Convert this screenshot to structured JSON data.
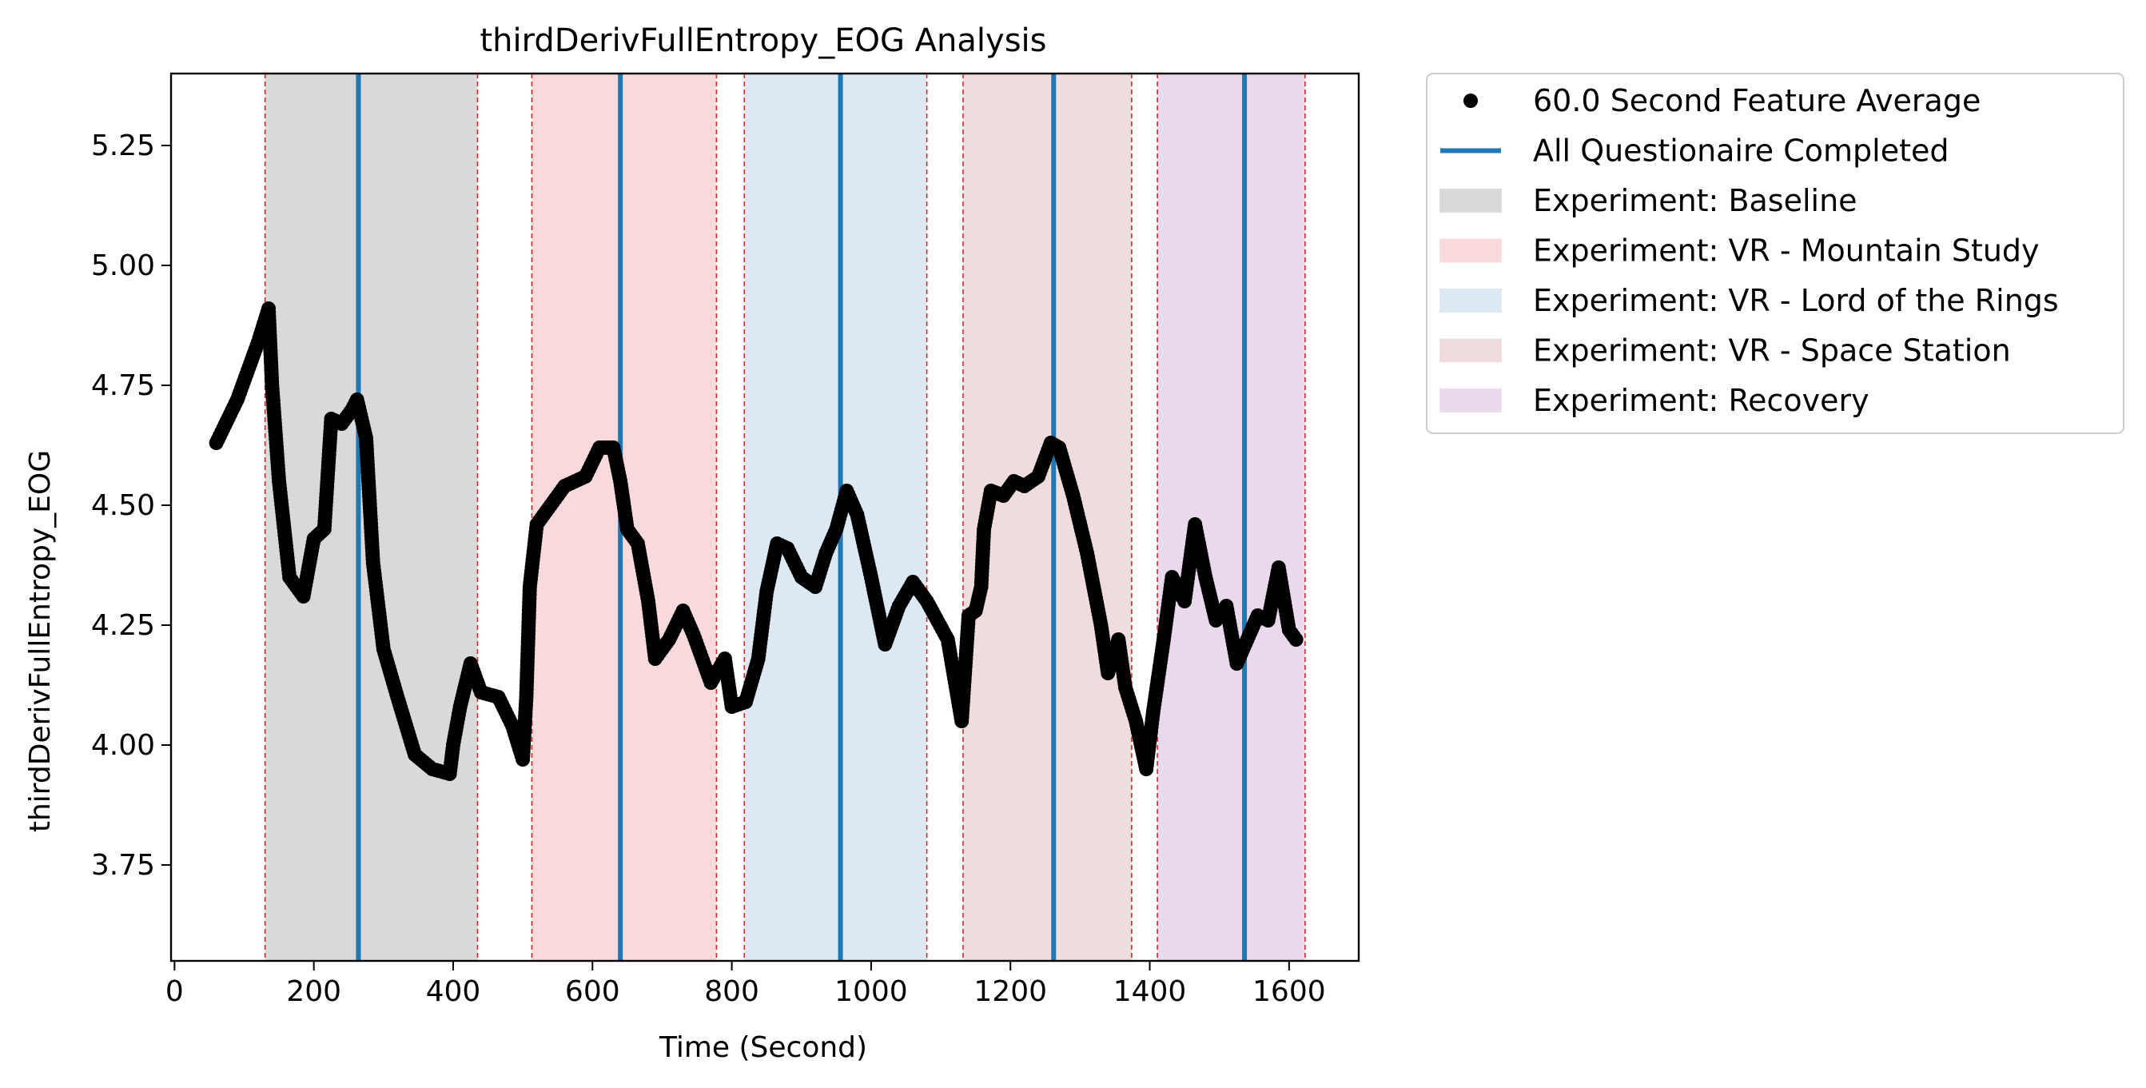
{
  "chart_data": {
    "type": "scatter",
    "title": "thirdDerivFullEntropy_EOG Analysis",
    "xlabel": "Time (Second)",
    "ylabel": "thirdDerivFullEntropy_EOG",
    "xlim": [
      -5,
      1700
    ],
    "ylim": [
      3.55,
      5.4
    ],
    "xticks": [
      0,
      200,
      400,
      600,
      800,
      1000,
      1200,
      1400,
      1600
    ],
    "xtick_labels": [
      "0",
      "200",
      "400",
      "600",
      "800",
      "1000",
      "1200",
      "1400",
      "1600"
    ],
    "yticks": [
      3.75,
      4.0,
      4.25,
      4.5,
      4.75,
      5.0,
      5.25
    ],
    "ytick_labels": [
      "3.75",
      "4.00",
      "4.25",
      "4.50",
      "4.75",
      "5.00",
      "5.25"
    ],
    "grid": false,
    "legend_position": "outside-right",
    "legend": [
      {
        "label": "60.0 Second Feature Average",
        "kind": "marker",
        "color": "#000000"
      },
      {
        "label": "All Questionaire Completed",
        "kind": "line",
        "color": "#1f77b4"
      },
      {
        "label": "Experiment: Baseline",
        "kind": "patch",
        "color": "#d9d9d9"
      },
      {
        "label": "Experiment: VR - Mountain Study",
        "kind": "patch",
        "color": "#f8dadc"
      },
      {
        "label": "Experiment: VR - Lord of the Rings",
        "kind": "patch",
        "color": "#dce9f3"
      },
      {
        "label": "Experiment: VR - Space Station",
        "kind": "patch",
        "color": "#f0dcdc"
      },
      {
        "label": "Experiment: Recovery",
        "kind": "patch",
        "color": "#ead9ec"
      }
    ],
    "spans": [
      {
        "name": "Experiment: Baseline",
        "start": 130,
        "end": 435,
        "color": "#d9d9d9"
      },
      {
        "name": "Experiment: VR - Mountain Study",
        "start": 513,
        "end": 778,
        "color": "#f8dadc"
      },
      {
        "name": "Experiment: VR - Lord of the Rings",
        "start": 818,
        "end": 1080,
        "color": "#dce9f3"
      },
      {
        "name": "Experiment: VR - Space Station",
        "start": 1132,
        "end": 1374,
        "color": "#f0dcdc"
      },
      {
        "name": "Experiment: Recovery",
        "start": 1411,
        "end": 1623,
        "color": "#ead9ec"
      }
    ],
    "span_edge_color": "#d62728",
    "questionnaire_lines": {
      "color": "#1f77b4",
      "x": [
        264,
        640,
        956,
        1262,
        1536
      ]
    },
    "series": [
      {
        "name": "60.0 Second Feature Average",
        "color": "#000000",
        "points": [
          [
            60,
            4.63
          ],
          [
            90,
            4.72
          ],
          [
            120,
            4.84
          ],
          [
            135,
            4.91
          ],
          [
            140,
            4.75
          ],
          [
            150,
            4.55
          ],
          [
            165,
            4.35
          ],
          [
            185,
            4.31
          ],
          [
            200,
            4.43
          ],
          [
            215,
            4.45
          ],
          [
            225,
            4.68
          ],
          [
            240,
            4.67
          ],
          [
            255,
            4.7
          ],
          [
            262,
            4.72
          ],
          [
            275,
            4.64
          ],
          [
            285,
            4.38
          ],
          [
            300,
            4.2
          ],
          [
            320,
            4.1
          ],
          [
            345,
            3.98
          ],
          [
            370,
            3.95
          ],
          [
            395,
            3.94
          ],
          [
            400,
            4.0
          ],
          [
            410,
            4.08
          ],
          [
            425,
            4.17
          ],
          [
            440,
            4.11
          ],
          [
            465,
            4.1
          ],
          [
            485,
            4.04
          ],
          [
            500,
            3.97
          ],
          [
            505,
            4.1
          ],
          [
            510,
            4.33
          ],
          [
            520,
            4.46
          ],
          [
            540,
            4.5
          ],
          [
            560,
            4.54
          ],
          [
            590,
            4.56
          ],
          [
            610,
            4.62
          ],
          [
            630,
            4.62
          ],
          [
            640,
            4.55
          ],
          [
            650,
            4.45
          ],
          [
            665,
            4.42
          ],
          [
            680,
            4.3
          ],
          [
            690,
            4.18
          ],
          [
            710,
            4.22
          ],
          [
            730,
            4.28
          ],
          [
            745,
            4.23
          ],
          [
            770,
            4.13
          ],
          [
            790,
            4.18
          ],
          [
            800,
            4.08
          ],
          [
            820,
            4.09
          ],
          [
            838,
            4.18
          ],
          [
            850,
            4.32
          ],
          [
            865,
            4.42
          ],
          [
            880,
            4.41
          ],
          [
            900,
            4.35
          ],
          [
            920,
            4.33
          ],
          [
            935,
            4.4
          ],
          [
            950,
            4.45
          ],
          [
            965,
            4.53
          ],
          [
            980,
            4.48
          ],
          [
            1000,
            4.35
          ],
          [
            1020,
            4.21
          ],
          [
            1040,
            4.29
          ],
          [
            1060,
            4.34
          ],
          [
            1080,
            4.3
          ],
          [
            1110,
            4.22
          ],
          [
            1130,
            4.05
          ],
          [
            1140,
            4.27
          ],
          [
            1150,
            4.28
          ],
          [
            1158,
            4.33
          ],
          [
            1162,
            4.45
          ],
          [
            1172,
            4.53
          ],
          [
            1190,
            4.52
          ],
          [
            1205,
            4.55
          ],
          [
            1220,
            4.54
          ],
          [
            1240,
            4.56
          ],
          [
            1258,
            4.63
          ],
          [
            1270,
            4.62
          ],
          [
            1290,
            4.52
          ],
          [
            1310,
            4.4
          ],
          [
            1330,
            4.25
          ],
          [
            1340,
            4.15
          ],
          [
            1355,
            4.22
          ],
          [
            1365,
            4.12
          ],
          [
            1380,
            4.05
          ],
          [
            1395,
            3.95
          ],
          [
            1405,
            4.07
          ],
          [
            1420,
            4.22
          ],
          [
            1432,
            4.35
          ],
          [
            1450,
            4.3
          ],
          [
            1465,
            4.46
          ],
          [
            1480,
            4.35
          ],
          [
            1495,
            4.26
          ],
          [
            1510,
            4.29
          ],
          [
            1525,
            4.17
          ],
          [
            1540,
            4.22
          ],
          [
            1555,
            4.27
          ],
          [
            1570,
            4.26
          ],
          [
            1585,
            4.37
          ],
          [
            1600,
            4.24
          ],
          [
            1610,
            4.22
          ]
        ]
      }
    ]
  }
}
